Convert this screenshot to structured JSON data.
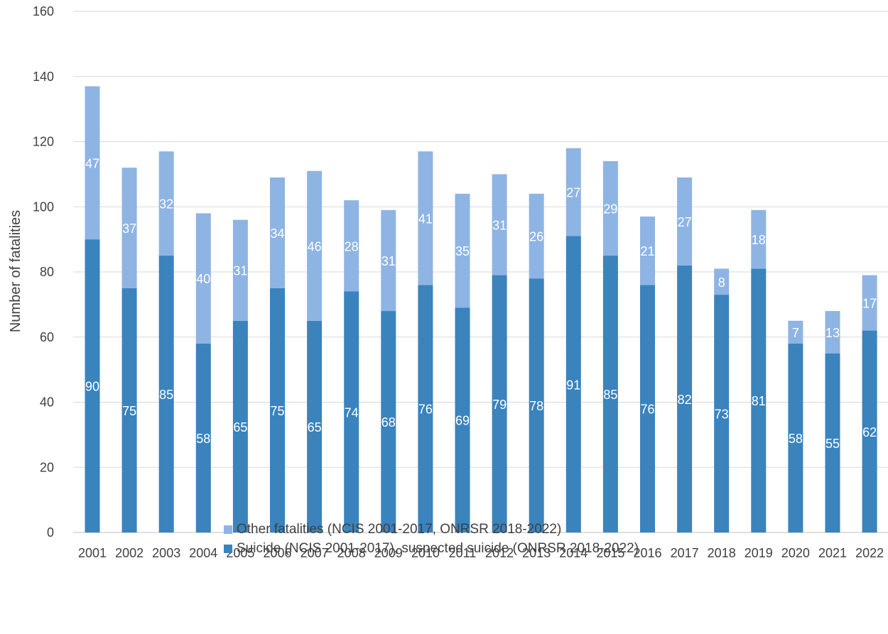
{
  "chart_data": {
    "type": "bar",
    "stacked": true,
    "categories": [
      "2001",
      "2002",
      "2003",
      "2004",
      "2005",
      "2006",
      "2007",
      "2008",
      "2009",
      "2010",
      "2011",
      "2012",
      "2013",
      "2014",
      "2015",
      "2016",
      "2017",
      "2018",
      "2019",
      "2020",
      "2021",
      "2022"
    ],
    "series": [
      {
        "name": "Suicide (NCIS 2001-2017), suspected suicide (ONRSR 2018-2022)",
        "color": "#3a83bd",
        "values": [
          90,
          75,
          85,
          58,
          65,
          75,
          65,
          74,
          68,
          76,
          69,
          79,
          78,
          91,
          85,
          76,
          82,
          73,
          81,
          58,
          55,
          62
        ]
      },
      {
        "name": "Other fatalities (NCIS 2001-2017, ONRSR 2018-2022)",
        "color": "#8eb4e3",
        "values": [
          47,
          37,
          32,
          40,
          31,
          34,
          46,
          28,
          31,
          41,
          35,
          31,
          26,
          27,
          29,
          21,
          27,
          8,
          18,
          7,
          13,
          17
        ]
      }
    ],
    "title": "",
    "xlabel": "",
    "ylabel": "Number of fatalities",
    "ylim": [
      0,
      160
    ],
    "yticks": [
      0,
      20,
      40,
      60,
      80,
      100,
      120,
      140,
      160
    ],
    "grid": true,
    "legend_position": "bottom"
  },
  "legend": [
    {
      "label": "Other fatalities (NCIS 2001-2017, ONRSR 2018-2022)",
      "color": "#8eb4e3"
    },
    {
      "label": "Suicide (NCIS 2001-2017), suspected suicide (ONRSR 2018-2022)",
      "color": "#3a83bd"
    }
  ]
}
